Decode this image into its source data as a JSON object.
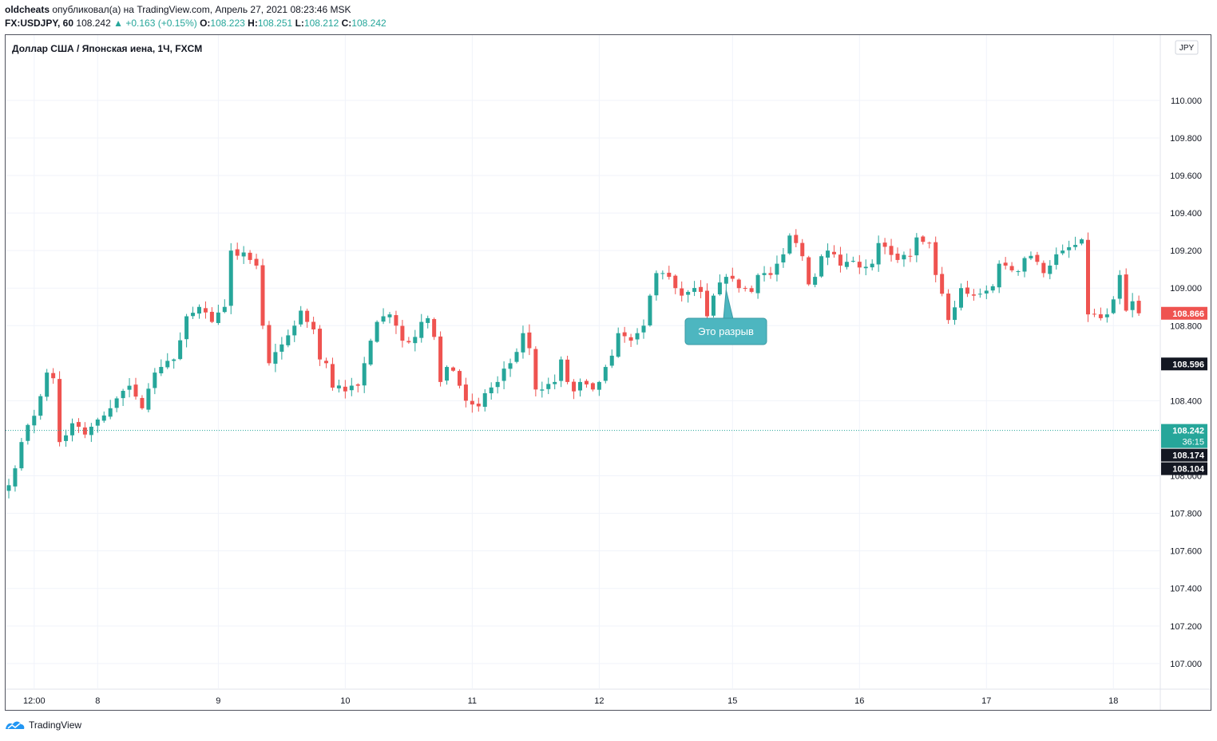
{
  "header": {
    "author": "oldcheats",
    "published_text": "опубликовал(а) на TradingView.com, Апрель 27, 2021 08:23:46 MSK",
    "symbol": "FX:USDJPY, 60",
    "last": "108.242",
    "change": "▲ +0.163 (+0.15%)",
    "o_label": "O:",
    "o_value": "108.223",
    "h_label": "H:",
    "h_value": "108.251",
    "l_label": "L:",
    "l_value": "108.212",
    "c_label": "C:",
    "c_value": "108.242"
  },
  "footer": {
    "brand": "TradingView"
  },
  "colors": {
    "up": "#26a69a",
    "down": "#ef5350",
    "grid": "#f0f3fa",
    "axis_text": "#131722",
    "callout": "#4db6c0"
  },
  "chart_data": {
    "type": "candlestick",
    "title": "Доллар США / Японская иена, 1Ч, FXCM",
    "currency_badge": "JPY",
    "ylim": [
      106.94,
      110.28
    ],
    "y_ticks": [
      "110.000",
      "109.800",
      "109.600",
      "109.400",
      "109.200",
      "109.000",
      "108.800",
      "108.400",
      "108.000",
      "107.800",
      "107.600",
      "107.400",
      "107.200",
      "107.000"
    ],
    "x_ticks": [
      {
        "label": "12:00",
        "i": 4
      },
      {
        "label": "8",
        "i": 14
      },
      {
        "label": "9",
        "i": 33
      },
      {
        "label": "10",
        "i": 53
      },
      {
        "label": "11",
        "i": 73
      },
      {
        "label": "12",
        "i": 93
      },
      {
        "label": "15",
        "i": 114
      },
      {
        "label": "16",
        "i": 134
      },
      {
        "label": "17",
        "i": 154
      },
      {
        "label": "18",
        "i": 174
      }
    ],
    "price_labels": [
      {
        "text": "108.866",
        "value": 108.866,
        "color": "#ef5350"
      },
      {
        "text": "108.596",
        "value": 108.596,
        "color": "#131722"
      },
      {
        "text": "108.242",
        "sub": "36:15",
        "value": 108.242,
        "color": "#26a69a"
      },
      {
        "text": "108.174",
        "value": 108.174,
        "color": "#131722"
      },
      {
        "text": "108.104",
        "value": 108.104,
        "color": "#131722"
      }
    ],
    "current_price": 108.242,
    "annotation": {
      "text": "Это разрыв",
      "i": 114,
      "value": 108.99
    },
    "key_points": [
      [
        0,
        107.95
      ],
      [
        2,
        108.18
      ],
      [
        4,
        108.32
      ],
      [
        6,
        108.55
      ],
      [
        7,
        108.52
      ],
      [
        8,
        108.18
      ],
      [
        10,
        108.28
      ],
      [
        12,
        108.22
      ],
      [
        14,
        108.3
      ],
      [
        16,
        108.36
      ],
      [
        19,
        108.48
      ],
      [
        21,
        108.36
      ],
      [
        23,
        108.55
      ],
      [
        26,
        108.62
      ],
      [
        28,
        108.85
      ],
      [
        30,
        108.9
      ],
      [
        32,
        108.82
      ],
      [
        34,
        108.9
      ],
      [
        35,
        109.2
      ],
      [
        37,
        109.19
      ],
      [
        38,
        109.15
      ],
      [
        39,
        109.12
      ],
      [
        40,
        108.8
      ],
      [
        41,
        108.6
      ],
      [
        43,
        108.7
      ],
      [
        45,
        108.8
      ],
      [
        46,
        108.88
      ],
      [
        47,
        108.82
      ],
      [
        48,
        108.78
      ],
      [
        49,
        108.62
      ],
      [
        50,
        108.6
      ],
      [
        51,
        108.47
      ],
      [
        53,
        108.45
      ],
      [
        55,
        108.48
      ],
      [
        56,
        108.6
      ],
      [
        57,
        108.72
      ],
      [
        58,
        108.82
      ],
      [
        59,
        108.85
      ],
      [
        60,
        108.86
      ],
      [
        61,
        108.8
      ],
      [
        62,
        108.72
      ],
      [
        64,
        108.74
      ],
      [
        65,
        108.82
      ],
      [
        66,
        108.84
      ],
      [
        67,
        108.74
      ],
      [
        68,
        108.5
      ],
      [
        69,
        108.58
      ],
      [
        70,
        108.56
      ],
      [
        71,
        108.48
      ],
      [
        72,
        108.4
      ],
      [
        73,
        108.38
      ],
      [
        74,
        108.37
      ],
      [
        75,
        108.44
      ],
      [
        77,
        108.5
      ],
      [
        79,
        108.6
      ],
      [
        80,
        108.66
      ],
      [
        81,
        108.76
      ],
      [
        82,
        108.68
      ],
      [
        83,
        108.46
      ],
      [
        84,
        108.46
      ],
      [
        86,
        108.5
      ],
      [
        87,
        108.62
      ],
      [
        88,
        108.5
      ],
      [
        89,
        108.45
      ],
      [
        90,
        108.5
      ],
      [
        92,
        108.46
      ],
      [
        93,
        108.5
      ],
      [
        94,
        108.58
      ],
      [
        95,
        108.64
      ],
      [
        96,
        108.76
      ],
      [
        98,
        108.72
      ],
      [
        99,
        108.76
      ],
      [
        100,
        108.8
      ],
      [
        101,
        108.96
      ],
      [
        102,
        109.08
      ],
      [
        103,
        109.08
      ],
      [
        104,
        109.06
      ],
      [
        105,
        109.0
      ],
      [
        106,
        108.96
      ],
      [
        107,
        108.98
      ],
      [
        109,
        108.98
      ],
      [
        110,
        108.85
      ],
      [
        111,
        108.96
      ],
      [
        112,
        109.03
      ],
      [
        113,
        109.06
      ],
      [
        114,
        109.05
      ],
      [
        115,
        109.0
      ],
      [
        116,
        109.0
      ],
      [
        117,
        108.98
      ],
      [
        118,
        109.07
      ],
      [
        119,
        109.08
      ],
      [
        120,
        109.07
      ],
      [
        121,
        109.13
      ],
      [
        122,
        109.18
      ],
      [
        123,
        109.28
      ],
      [
        124,
        109.24
      ],
      [
        125,
        109.17
      ],
      [
        126,
        109.02
      ],
      [
        127,
        109.06
      ],
      [
        128,
        109.17
      ],
      [
        129,
        109.2
      ],
      [
        130,
        109.18
      ],
      [
        131,
        109.12
      ],
      [
        132,
        109.14
      ],
      [
        134,
        109.11
      ],
      [
        136,
        109.13
      ],
      [
        137,
        109.24
      ],
      [
        138,
        109.22
      ],
      [
        140,
        109.15
      ],
      [
        142,
        109.17
      ],
      [
        143,
        109.27
      ],
      [
        145,
        109.24
      ],
      [
        146,
        109.07
      ],
      [
        147,
        108.97
      ],
      [
        148,
        108.83
      ],
      [
        150,
        109.0
      ],
      [
        151,
        108.97
      ],
      [
        153,
        108.97
      ],
      [
        155,
        109.01
      ],
      [
        156,
        109.13
      ],
      [
        157,
        109.12
      ],
      [
        159,
        109.09
      ],
      [
        160,
        109.16
      ],
      [
        162,
        109.14
      ],
      [
        163,
        109.08
      ],
      [
        164,
        109.12
      ],
      [
        165,
        109.18
      ],
      [
        166,
        109.2
      ],
      [
        168,
        109.23
      ],
      [
        169,
        109.26
      ],
      [
        170,
        108.86
      ],
      [
        171,
        108.86
      ],
      [
        172,
        108.84
      ],
      [
        173,
        108.86
      ],
      [
        174,
        108.94
      ],
      [
        175,
        109.07
      ],
      [
        176,
        108.88
      ],
      [
        177,
        108.93
      ],
      [
        178,
        108.866
      ]
    ]
  }
}
